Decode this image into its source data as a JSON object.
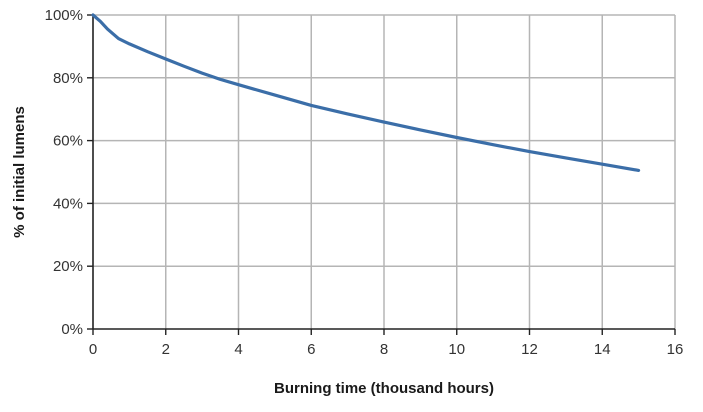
{
  "chart_data": {
    "type": "line",
    "title": "",
    "xlabel": "Burning time (thousand hours)",
    "ylabel": "% of initial lumens",
    "xlim": [
      0,
      16
    ],
    "ylim": [
      0,
      100
    ],
    "x_ticks": [
      0,
      2,
      4,
      6,
      8,
      10,
      12,
      14,
      16
    ],
    "x_tick_labels": [
      "0",
      "2",
      "4",
      "6",
      "8",
      "10",
      "12",
      "14",
      "16"
    ],
    "y_ticks": [
      0,
      20,
      40,
      60,
      80,
      100
    ],
    "y_tick_labels": [
      "0%",
      "20%",
      "40%",
      "60%",
      "80%",
      "100%"
    ],
    "grid": true,
    "legend": false,
    "series": [
      {
        "color": "#3b6ea8",
        "x": [
          0,
          0.2,
          0.4,
          0.7,
          1,
          1.5,
          2,
          2.5,
          3,
          3.5,
          4,
          5,
          6,
          7,
          8,
          9,
          10,
          11,
          12,
          13,
          14,
          15
        ],
        "y": [
          100,
          98,
          95.5,
          92.5,
          90.8,
          88.3,
          86,
          83.7,
          81.5,
          79.5,
          77.8,
          74.5,
          71.2,
          68.5,
          65.9,
          63.4,
          61,
          58.7,
          56.5,
          54.5,
          52.5,
          50.5
        ]
      }
    ]
  }
}
